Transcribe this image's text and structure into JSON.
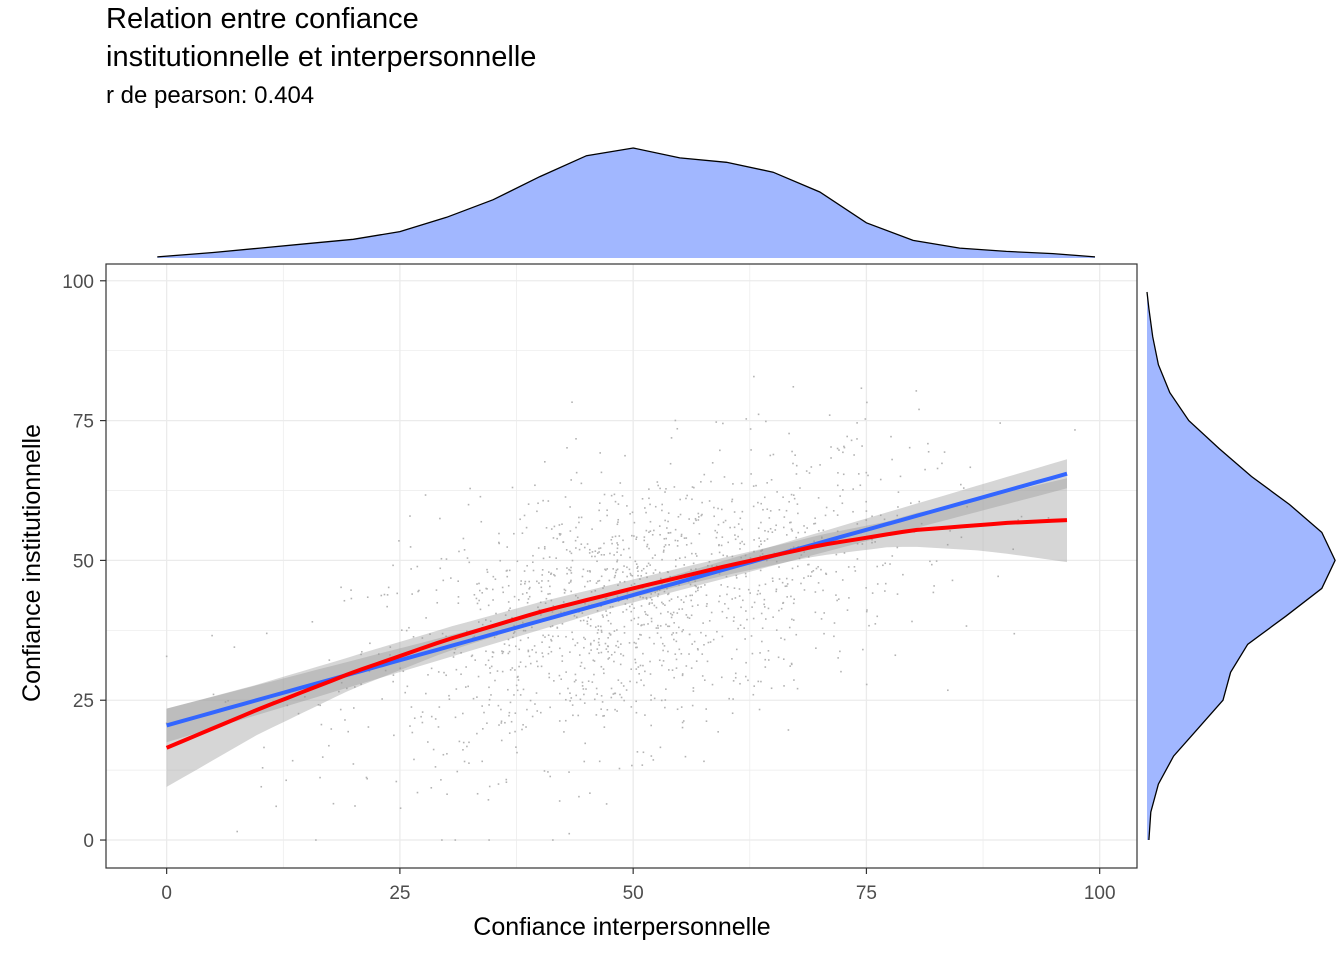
{
  "chart_data": {
    "type": "scatter",
    "title": "Relation entre confiance\ninstitutionnelle et interpersonnelle",
    "subtitle": "r de pearson:  0.404",
    "xlabel": "Confiance interpersonnelle",
    "ylabel": "Confiance institutionnelle",
    "xlim": [
      -6.5,
      104
    ],
    "ylim": [
      -5,
      103
    ],
    "x_ticks": [
      "0",
      "25",
      "50",
      "75",
      "100"
    ],
    "y_ticks": [
      "0",
      "25",
      "50",
      "75",
      "100"
    ],
    "grid": true,
    "scatter_color": "#b3b3b3",
    "fits": [
      {
        "method": "lm",
        "color": "#3366ff",
        "x": [
          0,
          96.5
        ],
        "y": [
          20.5,
          65.5
        ],
        "ci_halfwidth": [
          3,
          1.3,
          2.6
        ]
      },
      {
        "method": "loess",
        "color": "#ff0000",
        "x": [
          0,
          10,
          20,
          30,
          40,
          50,
          60,
          70,
          80,
          90,
          96.5
        ],
        "y": [
          16.5,
          23.5,
          30.0,
          35.8,
          40.8,
          45.0,
          49.0,
          52.7,
          55.4,
          56.7,
          57.2
        ],
        "ci_halfwidth": [
          7,
          4.5,
          3,
          2.2,
          1.8,
          1.6,
          1.6,
          1.7,
          2.3,
          4.5,
          7.5
        ]
      }
    ],
    "marginal_x": {
      "color": "#a1b7ff",
      "x": [
        -1,
        5,
        10,
        15,
        20,
        25,
        30,
        35,
        40,
        45,
        50,
        55,
        60,
        65,
        70,
        75,
        80,
        85,
        90,
        95,
        99.5
      ],
      "density": [
        0.01,
        0.05,
        0.09,
        0.13,
        0.17,
        0.24,
        0.37,
        0.53,
        0.74,
        0.93,
        1.0,
        0.91,
        0.87,
        0.78,
        0.6,
        0.32,
        0.16,
        0.09,
        0.06,
        0.04,
        0.01
      ]
    },
    "marginal_y": {
      "color": "#a1b7ff",
      "y": [
        0,
        5,
        10,
        15,
        20,
        25,
        30,
        35,
        40,
        45,
        50,
        55,
        60,
        65,
        70,
        75,
        80,
        85,
        90,
        95,
        98
      ],
      "density": [
        0.01,
        0.02,
        0.06,
        0.14,
        0.27,
        0.4,
        0.44,
        0.53,
        0.73,
        0.92,
        0.99,
        0.92,
        0.75,
        0.55,
        0.38,
        0.22,
        0.12,
        0.06,
        0.03,
        0.01,
        0.0
      ]
    }
  }
}
